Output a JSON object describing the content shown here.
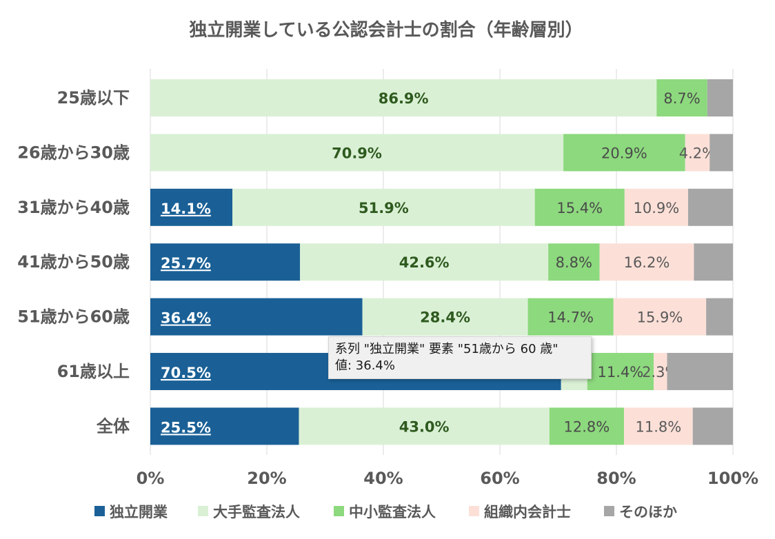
{
  "chart_data": {
    "type": "bar",
    "orientation": "horizontal",
    "stacked": true,
    "title": "独立開業している公認会計士の割合（年齢層別）",
    "categories": [
      "25歳以下",
      "26歳から30歳",
      "31歳から40歳",
      "41歳から50歳",
      "51歳から60歳",
      "61歳以上",
      "全体"
    ],
    "xlim": [
      0,
      100
    ],
    "xticks": [
      "0%",
      "20%",
      "40%",
      "60%",
      "80%",
      "100%"
    ],
    "grid": true,
    "legend_position": "bottom",
    "series": [
      {
        "name": "独立開業",
        "color": "#1a6096",
        "values": [
          0.0,
          0.0,
          14.1,
          25.7,
          36.4,
          70.5,
          25.5
        ],
        "labels": [
          "0.0%",
          "0.0%",
          "14.1%",
          "25.7%",
          "36.4%",
          "70.5%",
          "25.5%"
        ]
      },
      {
        "name": "大手監査法人",
        "color": "#daf0d5",
        "values": [
          86.9,
          70.9,
          51.9,
          42.6,
          28.4,
          4.5,
          43.0
        ],
        "labels": [
          "86.9%",
          "70.9%",
          "51.9%",
          "42.6%",
          "28.4%",
          "",
          "43.0%"
        ]
      },
      {
        "name": "中小監査法人",
        "color": "#8dd97e",
        "values": [
          8.7,
          20.9,
          15.4,
          8.8,
          14.7,
          11.4,
          12.8
        ],
        "labels": [
          "8.7%",
          "20.9%",
          "15.4%",
          "8.8%",
          "14.7%",
          "11.4%",
          "12.8%"
        ]
      },
      {
        "name": "組織内会計士",
        "color": "#fce0d8",
        "values": [
          0.0,
          4.2,
          10.9,
          16.2,
          15.9,
          2.3,
          11.8
        ],
        "labels": [
          "",
          "4.2%",
          "10.9%",
          "16.2%",
          "15.9%",
          "2.3%",
          "11.8%"
        ]
      },
      {
        "name": "そのほか",
        "color": "#a6a6a6",
        "values": [
          4.4,
          4.0,
          7.7,
          6.7,
          4.6,
          11.3,
          6.9
        ],
        "labels": [
          "",
          "",
          "",
          "",
          "",
          "",
          ""
        ]
      }
    ]
  },
  "tooltip": {
    "line1": "系列 \"独立開業\" 要素 \"51歳から 60 歳\"",
    "line2": "値: 36.4%"
  }
}
